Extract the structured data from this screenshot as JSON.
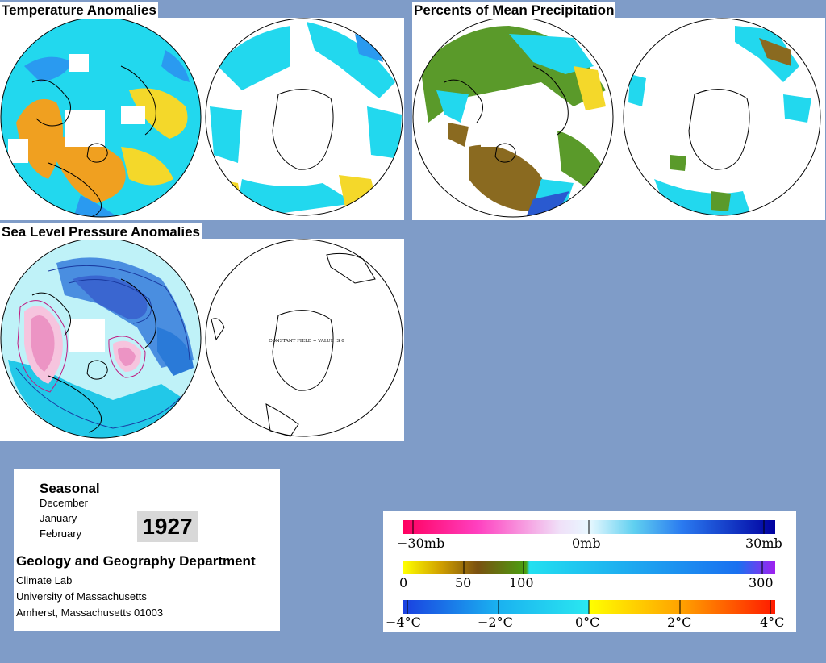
{
  "titles": {
    "temperature": "Temperature Anomalies",
    "precipitation": "Percents of Mean Precipitation",
    "pressure": "Sea Level Pressure Anomalies"
  },
  "map_annotations": {
    "constant_field": "CONSTANT FIELD = VALUE IS 0"
  },
  "info": {
    "season": "Seasonal",
    "months": [
      "December",
      "January",
      "February"
    ],
    "year": "1927",
    "department": "Geology and Geography Department",
    "address": [
      "Climate Lab",
      "University of Massachusetts",
      "Amherst, Massachusetts 01003"
    ]
  },
  "legend": {
    "pressure": {
      "labels": [
        "−30mb",
        "0mb",
        "30mb"
      ],
      "range": [
        -30,
        30
      ]
    },
    "precipitation": {
      "labels": [
        "0",
        "50",
        "100",
        "300"
      ],
      "range": [
        0,
        300
      ]
    },
    "temperature": {
      "labels": [
        "−4°C",
        "−2°C",
        "0°C",
        "2°C",
        "4°C"
      ],
      "range": [
        -4,
        4
      ]
    }
  },
  "colors": {
    "background": "#7f9cc8",
    "ocean_cyan": "#22d8ee",
    "warm_orange": "#f0a020",
    "warm_yellow": "#f4d82a",
    "cool_blue": "#2a9af0",
    "precip_green": "#5a9a2a",
    "precip_brown": "#8a6a20",
    "pressure_high": "#e07ab0",
    "pressure_low": "#3a66d0"
  }
}
